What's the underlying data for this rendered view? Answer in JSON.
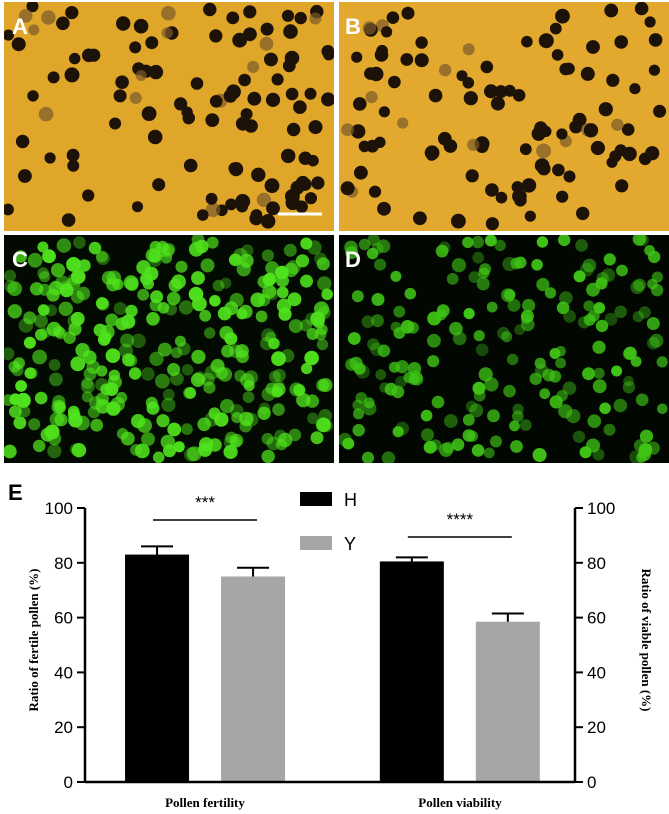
{
  "panels": [
    {
      "letter": "A",
      "stain": "brightfield",
      "background": "#e0a62a",
      "cell_color": "#1c1208"
    },
    {
      "letter": "B",
      "stain": "brightfield",
      "background": "#e2a92e",
      "cell_color": "#1c1208"
    },
    {
      "letter": "C",
      "stain": "fluorescence",
      "background": "#020a02",
      "cell_color": "#4fe21c"
    },
    {
      "letter": "D",
      "stain": "fluorescence",
      "background": "#020702",
      "cell_color": "#3fc516"
    }
  ],
  "chart_label": "E",
  "chart_data": {
    "type": "bar",
    "categories": [
      "Pollen fertility",
      "Pollen viability"
    ],
    "series": [
      {
        "name": "H",
        "color": "#000000",
        "values": [
          83,
          80.5
        ],
        "errors": [
          3,
          1.5
        ]
      },
      {
        "name": "Y",
        "color": "#a6a6a7",
        "values": [
          75,
          58.5
        ],
        "errors": [
          3.2,
          3
        ]
      }
    ],
    "ylabel_left": "Ratio of fertile pollen (%)",
    "ylabel_right": "Ratio of viable pollen (%)",
    "ylim": [
      0,
      100
    ],
    "yticks": [
      "0",
      "20",
      "40",
      "60",
      "80",
      "100"
    ],
    "significance": [
      {
        "category": "Pollen fertility",
        "label": "***"
      },
      {
        "category": "Pollen viability",
        "label": "****"
      }
    ],
    "legend_position": "top-center"
  }
}
